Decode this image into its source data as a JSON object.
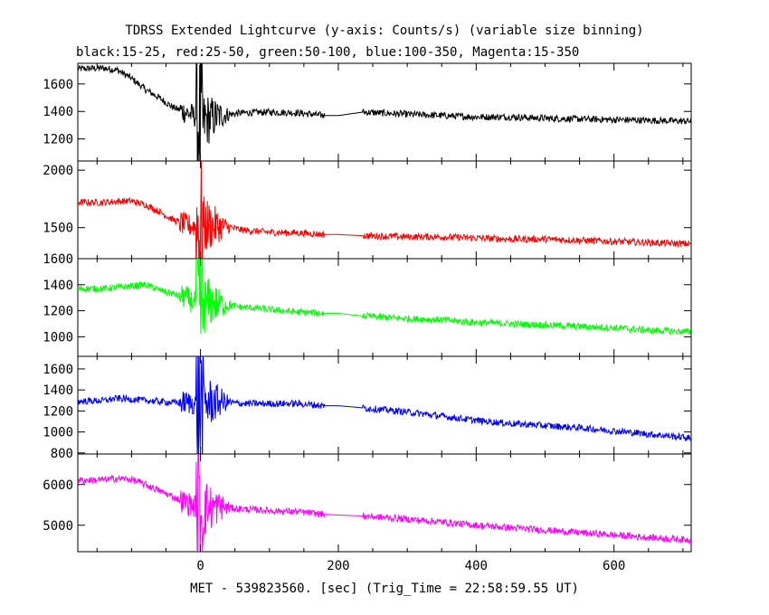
{
  "chart_data": {
    "type": "line",
    "title": "TDRSS Extended Lightcurve (y-axis: Counts/s) (variable size binning)",
    "subtitle": "black:15-25, red:25-50, green:50-100, blue:100-350, Magenta:15-350",
    "xlabel": "MET - 539823560. [sec] (Trig_Time = 22:58:59.55 UT)",
    "ylabel": "",
    "xlim": [
      -178,
      712
    ],
    "x_ticks": [
      0,
      200,
      400,
      600
    ],
    "x_tick_labels": [
      "0",
      "200",
      "400",
      "600"
    ],
    "grid": false,
    "panels": [
      {
        "name": "black:15-25",
        "color": "#000000",
        "ylim": [
          1040,
          1750
        ],
        "y_ticks": [
          1200,
          1400,
          1600
        ],
        "y_tick_labels": [
          "1200",
          "1400",
          "1600"
        ],
        "x": [
          -178,
          -140,
          -120,
          -100,
          -80,
          -60,
          -40,
          -20,
          -5,
          0,
          10,
          30,
          45,
          60,
          100,
          140,
          180,
          200,
          235,
          300,
          350,
          400,
          450,
          500,
          550,
          600,
          650,
          700,
          712
        ],
        "y": [
          1710,
          1715,
          1700,
          1640,
          1560,
          1500,
          1430,
          1390,
          1360,
          1300,
          1340,
          1370,
          1380,
          1390,
          1395,
          1390,
          1370,
          1370,
          1395,
          1380,
          1370,
          1360,
          1360,
          1350,
          1345,
          1340,
          1335,
          1330,
          1330
        ]
      },
      {
        "name": "red:25-50",
        "color": "#ff0000",
        "ylim": [
          1230,
          2080
        ],
        "y_ticks": [
          1500,
          2000
        ],
        "y_tick_labels": [
          "1500",
          "2000"
        ],
        "x": [
          -178,
          -140,
          -120,
          -100,
          -80,
          -60,
          -40,
          -20,
          -5,
          0,
          10,
          30,
          45,
          60,
          100,
          140,
          180,
          200,
          235,
          300,
          350,
          400,
          450,
          500,
          550,
          600,
          650,
          700,
          712
        ],
        "y": [
          1720,
          1720,
          1730,
          1730,
          1700,
          1640,
          1570,
          1520,
          1510,
          1500,
          1520,
          1510,
          1500,
          1480,
          1460,
          1455,
          1440,
          1440,
          1430,
          1420,
          1420,
          1410,
          1400,
          1400,
          1390,
          1380,
          1370,
          1360,
          1360
        ]
      },
      {
        "name": "green:50-100",
        "color": "#00ff00",
        "ylim": [
          850,
          1600
        ],
        "y_ticks": [
          1000,
          1200,
          1400,
          1600
        ],
        "y_tick_labels": [
          "1000",
          "1200",
          "1400",
          "1600"
        ],
        "x": [
          -178,
          -140,
          -120,
          -100,
          -80,
          -60,
          -40,
          -20,
          -5,
          0,
          10,
          30,
          45,
          60,
          100,
          140,
          180,
          200,
          235,
          300,
          350,
          400,
          450,
          500,
          550,
          600,
          650,
          700,
          712
        ],
        "y": [
          1370,
          1370,
          1380,
          1390,
          1400,
          1360,
          1330,
          1300,
          1250,
          1230,
          1260,
          1250,
          1240,
          1230,
          1210,
          1190,
          1180,
          1180,
          1160,
          1140,
          1130,
          1110,
          1100,
          1090,
          1080,
          1070,
          1050,
          1040,
          1040
        ]
      },
      {
        "name": "blue:100-350",
        "color": "#0000ff",
        "ylim": [
          790,
          1720
        ],
        "y_ticks": [
          800,
          1000,
          1200,
          1400,
          1600
        ],
        "y_tick_labels": [
          "800",
          "1000",
          "1200",
          "1400",
          "1600"
        ],
        "x": [
          -178,
          -140,
          -120,
          -100,
          -80,
          -60,
          -40,
          -20,
          -5,
          0,
          10,
          30,
          45,
          60,
          100,
          140,
          180,
          200,
          235,
          300,
          350,
          400,
          450,
          500,
          550,
          600,
          650,
          700,
          712
        ],
        "y": [
          1290,
          1300,
          1320,
          1310,
          1300,
          1290,
          1280,
          1280,
          1270,
          1250,
          1280,
          1290,
          1280,
          1270,
          1270,
          1270,
          1250,
          1250,
          1230,
          1190,
          1150,
          1110,
          1080,
          1060,
          1040,
          1010,
          980,
          950,
          940
        ]
      },
      {
        "name": "Magenta:15-350",
        "color": "#ff00ff",
        "ylim": [
          4350,
          6750
        ],
        "y_ticks": [
          5000,
          6000
        ],
        "y_tick_labels": [
          "5000",
          "6000"
        ],
        "x": [
          -178,
          -140,
          -120,
          -100,
          -80,
          -60,
          -40,
          -20,
          -5,
          0,
          10,
          30,
          45,
          60,
          100,
          140,
          180,
          200,
          235,
          300,
          350,
          400,
          450,
          500,
          550,
          600,
          650,
          700,
          712
        ],
        "y": [
          6100,
          6120,
          6150,
          6130,
          6000,
          5850,
          5700,
          5550,
          5450,
          5350,
          5430,
          5450,
          5420,
          5400,
          5360,
          5330,
          5270,
          5250,
          5230,
          5150,
          5080,
          5000,
          4940,
          4880,
          4820,
          4760,
          4700,
          4650,
          4640
        ]
      }
    ]
  }
}
